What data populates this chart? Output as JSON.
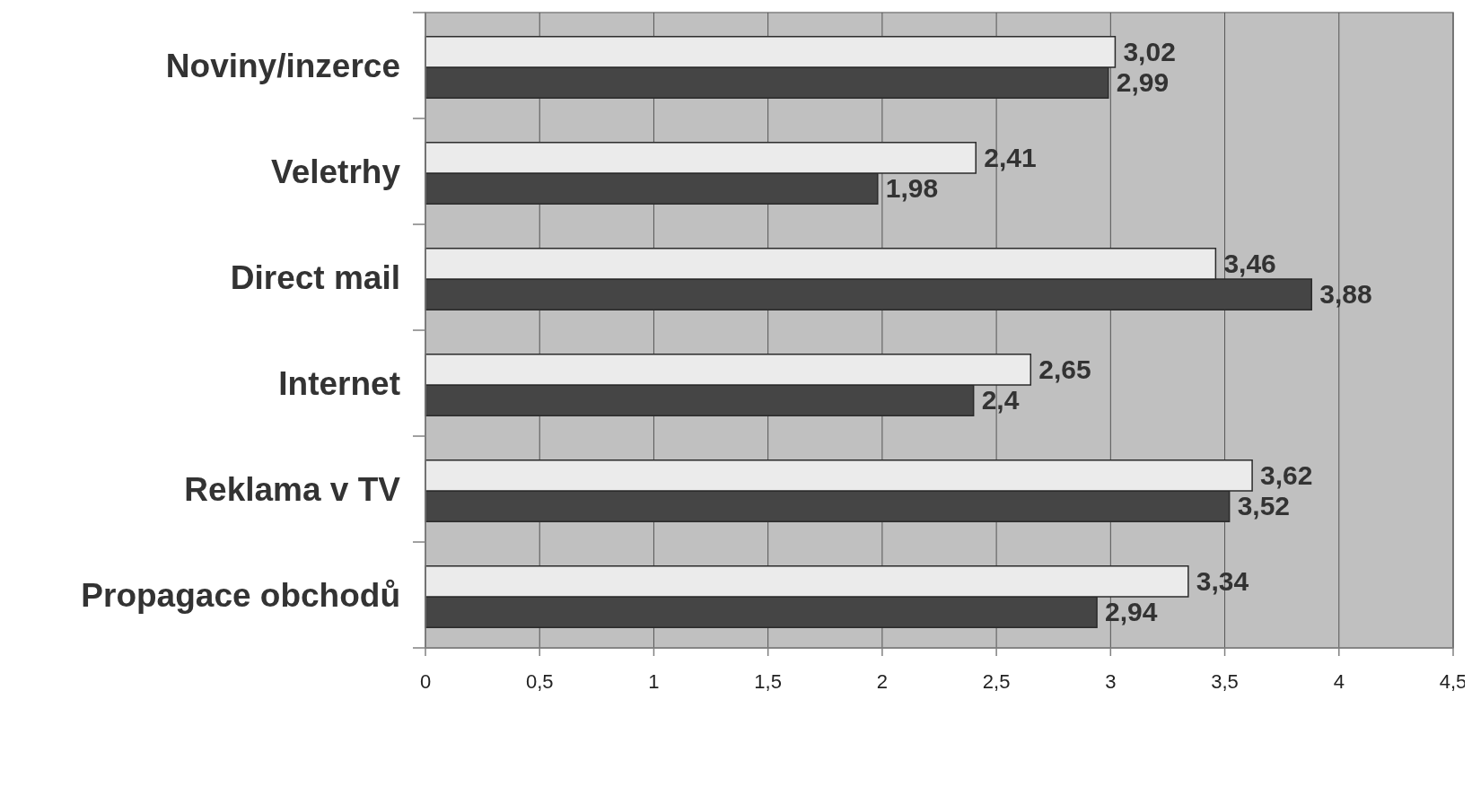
{
  "chart_data": {
    "type": "bar",
    "orientation": "horizontal",
    "categories": [
      "Noviny/inzerce",
      "Veletrhy",
      "Direct mail",
      "Internet",
      "Reklama v TV",
      "Propagace obchodů"
    ],
    "series": [
      {
        "color": "#454545",
        "values": [
          2.99,
          1.98,
          3.88,
          2.4,
          3.52,
          2.94
        ],
        "value_labels": [
          "2,99",
          "1,98",
          "3,88",
          "2,4",
          "3,52",
          "2,94"
        ]
      },
      {
        "color": "#ebebeb",
        "values": [
          3.02,
          2.41,
          3.46,
          2.65,
          3.62,
          3.34
        ],
        "value_labels": [
          "3,02",
          "2,41",
          "3,46",
          "2,65",
          "3,62",
          "3,34"
        ]
      }
    ],
    "xlim": [
      0,
      4.5
    ],
    "xticks": [
      0,
      {
        "value": 0.5,
        "label": "0,5"
      },
      1,
      {
        "value": 1.5,
        "label": "1,5"
      },
      2,
      {
        "value": 2.5,
        "label": "2,5"
      },
      3,
      {
        "value": 3.5,
        "label": "3,5"
      },
      4,
      {
        "value": 4.5,
        "label": "4,5"
      }
    ],
    "grid": "x"
  }
}
